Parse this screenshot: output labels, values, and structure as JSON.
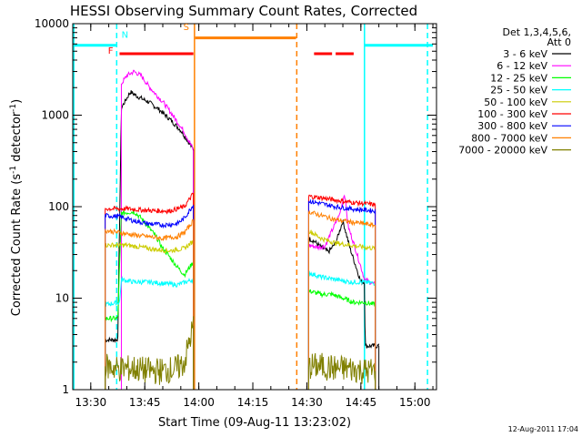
{
  "chart_data": {
    "type": "line",
    "title": "HESSI Observing Summary Count Rates, Corrected",
    "xlabel": "Start Time (09-Aug-11 13:23:02)",
    "ylabel_prefix": "Corrected Count Rate (s",
    "ylabel_sup1": "-1",
    "ylabel_mid": " detector",
    "ylabel_sup2": "-1",
    "ylabel_suffix": ")",
    "x_unit": "minutes",
    "xlim": [
      805,
      906
    ],
    "ylim": [
      1,
      10000
    ],
    "yscale": "log",
    "x_ticks": [
      {
        "value": 810,
        "label": "13:30"
      },
      {
        "value": 825,
        "label": "13:45"
      },
      {
        "value": 840,
        "label": "14:00"
      },
      {
        "value": 855,
        "label": "14:15"
      },
      {
        "value": 870,
        "label": "14:30"
      },
      {
        "value": 885,
        "label": "14:45"
      },
      {
        "value": 900,
        "label": "15:00"
      }
    ],
    "y_ticks": [
      {
        "value": 1,
        "label": "1"
      },
      {
        "value": 10,
        "label": "10"
      },
      {
        "value": 100,
        "label": "100"
      },
      {
        "value": 1000,
        "label": "1000"
      },
      {
        "value": 10000,
        "label": "10000"
      }
    ],
    "legend_header_1": "Det 1,3,4,5,6,",
    "legend_header_2": "Att 0",
    "legend_position": "right",
    "timestamp": "12-Aug-2011 17:04",
    "series": [
      {
        "name": "3 - 6 keV",
        "color": "#000000",
        "segments": [
          [
            [
              814,
              3.5
            ],
            [
              817.5,
              3.5
            ],
            [
              818.5,
              1200
            ],
            [
              821,
              1800
            ],
            [
              823,
              1600
            ],
            [
              826,
              1400
            ],
            [
              829,
              1150
            ],
            [
              832,
              900
            ],
            [
              835,
              680
            ],
            [
              837,
              520
            ],
            [
              838.5,
              420
            ]
          ],
          [
            [
              870.5,
              45
            ],
            [
              872,
              42
            ],
            [
              874,
              36
            ],
            [
              876,
              32
            ],
            [
              878,
              40
            ],
            [
              880,
              70
            ],
            [
              882,
              35
            ],
            [
              884,
              20
            ],
            [
              885,
              15
            ],
            [
              886,
              15
            ],
            [
              886.2,
              3
            ],
            [
              890,
              3
            ]
          ]
        ]
      },
      {
        "name": "6 - 12 keV",
        "color": "#ff00ff",
        "segments": [
          [
            [
              818.5,
              2200
            ],
            [
              820,
              2700
            ],
            [
              822,
              3000
            ],
            [
              824,
              2700
            ],
            [
              826,
              2100
            ],
            [
              828,
              1700
            ],
            [
              830,
              1400
            ],
            [
              832,
              1100
            ],
            [
              834,
              850
            ],
            [
              836,
              650
            ],
            [
              838.5,
              420
            ]
          ],
          [
            [
              870.5,
              38
            ],
            [
              873,
              36
            ],
            [
              875,
              37
            ],
            [
              877,
              55
            ],
            [
              879,
              80
            ],
            [
              880.5,
              140
            ],
            [
              881.5,
              60
            ],
            [
              883,
              40
            ],
            [
              885,
              22
            ],
            [
              886,
              16
            ],
            [
              889,
              14
            ]
          ]
        ]
      },
      {
        "name": "12 - 25 keV",
        "color": "#00ff00",
        "segments": [
          [
            [
              814,
              6
            ],
            [
              817.5,
              6
            ],
            [
              818.5,
              85
            ],
            [
              822,
              88
            ],
            [
              824,
              75
            ],
            [
              826,
              60
            ],
            [
              828,
              48
            ],
            [
              830,
              35
            ],
            [
              832,
              28
            ],
            [
              834,
              22
            ],
            [
              836,
              18
            ],
            [
              838.5,
              25
            ]
          ],
          [
            [
              870.5,
              12
            ],
            [
              874,
              11
            ],
            [
              877,
              11
            ],
            [
              880,
              10
            ],
            [
              883,
              9
            ],
            [
              886,
              9
            ],
            [
              889,
              8.5
            ]
          ]
        ]
      },
      {
        "name": "25 - 50 keV",
        "color": "#00ffff",
        "segments": [
          [
            [
              814,
              8.5
            ],
            [
              818,
              9
            ],
            [
              818.5,
              16
            ],
            [
              822,
              15
            ],
            [
              826,
              15
            ],
            [
              830,
              14.5
            ],
            [
              834,
              14
            ],
            [
              838.5,
              16
            ]
          ],
          [
            [
              870.5,
              19
            ],
            [
              874,
              17
            ],
            [
              878,
              16
            ],
            [
              882,
              15
            ],
            [
              886,
              15
            ],
            [
              889,
              14.5
            ]
          ]
        ]
      },
      {
        "name": "50 - 100 keV",
        "color": "#cccc00",
        "segments": [
          [
            [
              814,
              38
            ],
            [
              820,
              38
            ],
            [
              824,
              36
            ],
            [
              828,
              34
            ],
            [
              832,
              33
            ],
            [
              836,
              35
            ],
            [
              838.5,
              42
            ]
          ],
          [
            [
              870.5,
              55
            ],
            [
              874,
              45
            ],
            [
              878,
              40
            ],
            [
              882,
              38
            ],
            [
              886,
              36
            ],
            [
              889,
              35
            ]
          ]
        ]
      },
      {
        "name": "100 - 300 keV",
        "color": "#ff0000",
        "segments": [
          [
            [
              814,
              95
            ],
            [
              820,
              95
            ],
            [
              824,
              92
            ],
            [
              828,
              90
            ],
            [
              832,
              90
            ],
            [
              836,
              100
            ],
            [
              838.5,
              140
            ]
          ],
          [
            [
              870.5,
              130
            ],
            [
              874,
              125
            ],
            [
              878,
              118
            ],
            [
              882,
              112
            ],
            [
              886,
              108
            ],
            [
              889,
              105
            ]
          ]
        ]
      },
      {
        "name": "300 - 800 keV",
        "color": "#0000ff",
        "segments": [
          [
            [
              814,
              80
            ],
            [
              818,
              78
            ],
            [
              822,
              70
            ],
            [
              826,
              65
            ],
            [
              830,
              63
            ],
            [
              834,
              65
            ],
            [
              836,
              75
            ],
            [
              838.5,
              105
            ]
          ],
          [
            [
              870.5,
              115
            ],
            [
              874,
              108
            ],
            [
              878,
              100
            ],
            [
              882,
              95
            ],
            [
              886,
              92
            ],
            [
              889,
              90
            ]
          ]
        ]
      },
      {
        "name": "800 - 7000 keV",
        "color": "#ff8000",
        "segments": [
          [
            [
              814,
              55
            ],
            [
              818,
              52
            ],
            [
              822,
              49
            ],
            [
              826,
              47
            ],
            [
              830,
              45
            ],
            [
              834,
              47
            ],
            [
              836,
              52
            ],
            [
              838.5,
              70
            ]
          ],
          [
            [
              870.5,
              88
            ],
            [
              874,
              80
            ],
            [
              878,
              72
            ],
            [
              882,
              68
            ],
            [
              886,
              65
            ],
            [
              889,
              62
            ]
          ]
        ]
      },
      {
        "name": "7000 - 20000 keV",
        "color": "#808000",
        "segments": [
          [
            [
              814,
              1.8
            ],
            [
              818,
              1.7
            ],
            [
              822,
              1.7
            ],
            [
              826,
              1.6
            ],
            [
              830,
              1.6
            ],
            [
              834,
              1.7
            ],
            [
              836,
              2
            ],
            [
              838.5,
              5
            ]
          ],
          [
            [
              870.5,
              1.8
            ],
            [
              874,
              1.8
            ],
            [
              878,
              1.7
            ],
            [
              882,
              1.7
            ],
            [
              886,
              1.6
            ],
            [
              889,
              1.6
            ]
          ]
        ]
      }
    ],
    "flags": [
      {
        "label": "F",
        "color": "#ff0000",
        "y": 4700,
        "segments": [
          [
            818,
            838.5
          ],
          [
            872,
            877
          ],
          [
            878,
            883
          ]
        ]
      },
      {
        "label": "N",
        "color": "#00ffff",
        "y": 5800,
        "segments": [
          [
            805,
            817
          ],
          [
            886,
            905
          ]
        ]
      },
      {
        "label": "S",
        "color": "#ff8000",
        "y": 7000,
        "segments": [
          [
            839,
            867
          ]
        ]
      }
    ],
    "vlines": [
      {
        "x": 805.3,
        "color": "#00ffff",
        "style": "solid"
      },
      {
        "x": 817.2,
        "color": "#00ffff",
        "style": "dashed"
      },
      {
        "x": 838.8,
        "color": "#ff8000",
        "style": "solid"
      },
      {
        "x": 867.2,
        "color": "#ff8000",
        "style": "dashed"
      },
      {
        "x": 886.0,
        "color": "#00ffff",
        "style": "solid"
      },
      {
        "x": 903.5,
        "color": "#00ffff",
        "style": "dashed"
      }
    ],
    "flag_label_positions": [
      {
        "label": "F",
        "x": 815.5,
        "y": 4700,
        "color": "#ff0000"
      },
      {
        "label": "N",
        "x": 819.5,
        "y": 7000,
        "color": "#00ffff"
      },
      {
        "label": "S",
        "x": 836.5,
        "y": 8500,
        "color": "#ff8000"
      }
    ]
  }
}
